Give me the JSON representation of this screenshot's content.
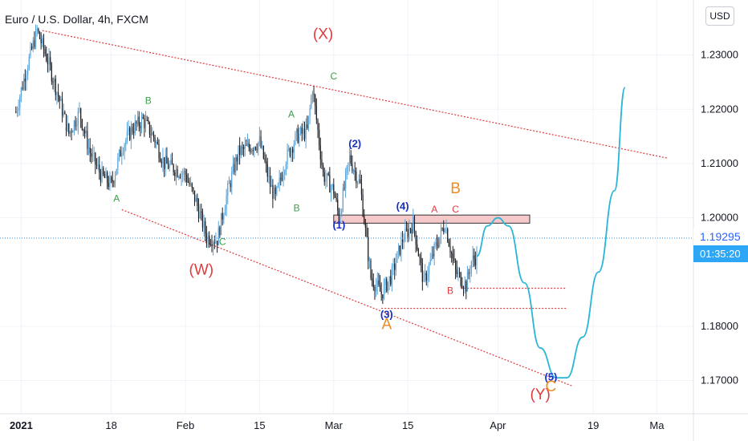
{
  "header": {
    "title": "Euro / U.S. Dollar, 4h, FXCM",
    "currency_button": "USD"
  },
  "price_tag": {
    "last_price": "1.19295",
    "countdown": "01:35:20"
  },
  "colors": {
    "candle_up": "#5aa2d6",
    "candle_down": "#1b1d22",
    "channel": "#e0393e",
    "projection": "#29b6d6",
    "label_green": "#3aa04a",
    "label_red": "#e0393e",
    "label_blue": "#1a30c0",
    "label_orange": "#f08a24",
    "zone_fill": "#f5c9c9"
  },
  "chart_data": {
    "type": "candlestick",
    "symbol": "Euro / U.S. Dollar",
    "interval": "4h",
    "source": "FXCM",
    "ylim": [
      1.1655,
      1.2362
    ],
    "y_ticks": [
      "1.23000",
      "1.22000",
      "1.21000",
      "1.20000",
      "1.18000",
      "1.17000"
    ],
    "x_ticks": [
      "2021",
      "18",
      "Feb",
      "15",
      "Mar",
      "15",
      "Apr",
      "19",
      "Ma"
    ],
    "last_price": 1.19295,
    "price_path": [
      [
        "2020-12-31",
        1.2195
      ],
      [
        "2021-01-02",
        1.2275
      ],
      [
        "2021-01-04",
        1.2345
      ],
      [
        "2021-01-06",
        1.229
      ],
      [
        "2021-01-08",
        1.2225
      ],
      [
        "2021-01-10",
        1.2155
      ],
      [
        "2021-01-12",
        1.2195
      ],
      [
        "2021-01-14",
        1.212
      ],
      [
        "2021-01-16",
        1.208
      ],
      [
        "2021-01-18",
        1.206
      ],
      [
        "2021-01-20",
        1.213
      ],
      [
        "2021-01-22",
        1.2165
      ],
      [
        "2021-01-24",
        1.218
      ],
      [
        "2021-01-26",
        1.215
      ],
      [
        "2021-01-28",
        1.21
      ],
      [
        "2021-02-01",
        1.208
      ],
      [
        "2021-02-03",
        1.203
      ],
      [
        "2021-02-05",
        1.1965
      ],
      [
        "2021-02-07",
        1.196
      ],
      [
        "2021-02-09",
        1.205
      ],
      [
        "2021-02-11",
        1.212
      ],
      [
        "2021-02-13",
        1.213
      ],
      [
        "2021-02-15",
        1.214
      ],
      [
        "2021-02-17",
        1.206
      ],
      [
        "2021-02-18",
        1.2035
      ],
      [
        "2021-02-20",
        1.211
      ],
      [
        "2021-02-22",
        1.215
      ],
      [
        "2021-02-24",
        1.216
      ],
      [
        "2021-02-25",
        1.224
      ],
      [
        "2021-02-27",
        1.208
      ],
      [
        "2021-03-01",
        1.205
      ],
      [
        "2021-03-02",
        1.2
      ],
      [
        "2021-03-04",
        1.211
      ],
      [
        "2021-03-06",
        1.206
      ],
      [
        "2021-03-08",
        1.189
      ],
      [
        "2021-03-10",
        1.186
      ],
      [
        "2021-03-12",
        1.1895
      ],
      [
        "2021-03-14",
        1.196
      ],
      [
        "2021-03-16",
        1.199
      ],
      [
        "2021-03-18",
        1.188
      ],
      [
        "2021-03-20",
        1.194
      ],
      [
        "2021-03-22",
        1.199
      ],
      [
        "2021-03-24",
        1.19
      ],
      [
        "2021-03-26",
        1.1875
      ],
      [
        "2021-03-27",
        1.192
      ],
      [
        "2021-03-28",
        1.1929
      ]
    ],
    "projection": [
      [
        "2021-03-28",
        1.1929
      ],
      [
        "2021-03-30",
        1.1985
      ],
      [
        "2021-04-01",
        1.2
      ],
      [
        "2021-04-03",
        1.1985
      ],
      [
        "2021-04-06",
        1.188
      ],
      [
        "2021-04-09",
        1.176
      ],
      [
        "2021-04-12",
        1.1705
      ],
      [
        "2021-04-14",
        1.1705
      ],
      [
        "2021-04-17",
        1.178
      ],
      [
        "2021-04-20",
        1.19
      ],
      [
        "2021-04-23",
        1.205
      ],
      [
        "2021-04-25",
        1.224
      ]
    ],
    "resistance_zone": {
      "from": "2021-03-01",
      "to": "2021-04-07",
      "low": 1.199,
      "high": 1.2005
    },
    "support_lines": [
      {
        "from": "2021-03-25",
        "to": "2021-04-14",
        "y": 1.187
      },
      {
        "from": "2021-03-10",
        "to": "2021-04-14",
        "y": 1.1833
      }
    ],
    "channel_lines": [
      {
        "from": [
          "2021-01-05",
          1.2345
        ],
        "to": [
          "2021-05-03",
          1.211
        ]
      },
      {
        "from": [
          "2021-01-20",
          1.2015
        ],
        "to": [
          "2021-04-15",
          1.169
        ]
      }
    ],
    "wave_labels": [
      {
        "text": "(X)",
        "date": "2021-02-27",
        "y": 1.233,
        "color": "red"
      },
      {
        "text": "(W)",
        "date": "2021-02-04",
        "y": 1.1895,
        "color": "red"
      },
      {
        "text": "(Y)",
        "date": "2021-04-09",
        "y": 1.1665,
        "color": "red"
      },
      {
        "text": "A",
        "date": "2021-01-19",
        "y": 1.203,
        "color": "green"
      },
      {
        "text": "B",
        "date": "2021-01-25",
        "y": 1.221,
        "color": "green"
      },
      {
        "text": "C",
        "date": "2021-02-08",
        "y": 1.195,
        "color": "green"
      },
      {
        "text": "A",
        "date": "2021-02-21",
        "y": 1.2185,
        "color": "green"
      },
      {
        "text": "B",
        "date": "2021-02-22",
        "y": 1.2012,
        "color": "green"
      },
      {
        "text": "C",
        "date": "2021-03-01",
        "y": 1.2255,
        "color": "green"
      },
      {
        "text": "(1)",
        "date": "2021-03-02",
        "y": 1.198,
        "color": "blue"
      },
      {
        "text": "(2)",
        "date": "2021-03-05",
        "y": 1.213,
        "color": "blue"
      },
      {
        "text": "(3)",
        "date": "2021-03-11",
        "y": 1.1815,
        "color": "blue"
      },
      {
        "text": "(4)",
        "date": "2021-03-14",
        "y": 1.2015,
        "color": "blue"
      },
      {
        "text": "(5)",
        "date": "2021-04-11",
        "y": 1.17,
        "color": "blue"
      },
      {
        "text": "A",
        "date": "2021-03-20",
        "y": 1.201,
        "color": "red"
      },
      {
        "text": "C",
        "date": "2021-03-24",
        "y": 1.201,
        "color": "red"
      },
      {
        "text": "B",
        "date": "2021-03-23",
        "y": 1.186,
        "color": "red"
      },
      {
        "text": "A",
        "date": "2021-03-11",
        "y": 1.1795,
        "color": "orange"
      },
      {
        "text": "B",
        "date": "2021-03-24",
        "y": 1.2045,
        "color": "orange"
      },
      {
        "text": "C",
        "date": "2021-04-11",
        "y": 1.168,
        "color": "orange"
      }
    ]
  }
}
